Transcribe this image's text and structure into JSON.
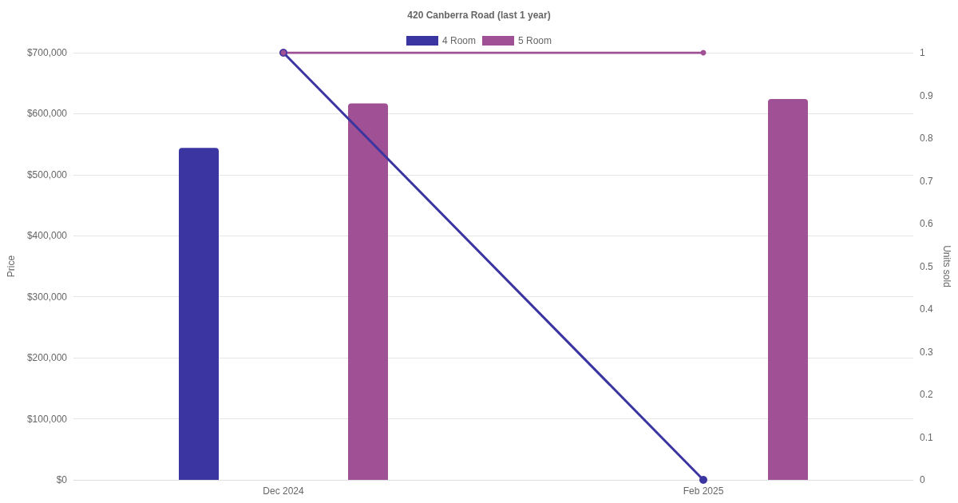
{
  "chart_data": {
    "type": "bar",
    "title": "420 Canberra Road (last 1 year)",
    "ylabel": "Price",
    "y2label": "Units sold",
    "categories": [
      "Dec 2024",
      "Feb 2025"
    ],
    "series": [
      {
        "name": "4 Room",
        "color": "#3a35a0",
        "values": [
          544000,
          null
        ]
      },
      {
        "name": "5 Room",
        "color": "#a05094",
        "values": [
          617000,
          624000
        ]
      },
      {
        "type": "line",
        "axis": "y2",
        "color": "#3a35a0",
        "values": [
          1,
          0
        ]
      },
      {
        "type": "line",
        "axis": "y2",
        "color": "#a05094",
        "values": [
          1,
          1
        ]
      }
    ],
    "ylim": [
      0,
      700000
    ],
    "yticks": [
      {
        "value": 0,
        "label": "$0"
      },
      {
        "value": 100000,
        "label": "$100,000"
      },
      {
        "value": 200000,
        "label": "$200,000"
      },
      {
        "value": 300000,
        "label": "$300,000"
      },
      {
        "value": 400000,
        "label": "$400,000"
      },
      {
        "value": 500000,
        "label": "$500,000"
      },
      {
        "value": 600000,
        "label": "$600,000"
      },
      {
        "value": 700000,
        "label": "$700,000"
      }
    ],
    "y2lim": [
      0,
      1
    ],
    "y2ticks": [
      0,
      0.1,
      0.2,
      0.3,
      0.4,
      0.5,
      0.6,
      0.7,
      0.8,
      0.9,
      1
    ],
    "grid": "y",
    "legend": "top",
    "marker": "circle",
    "line_style": "solid"
  }
}
